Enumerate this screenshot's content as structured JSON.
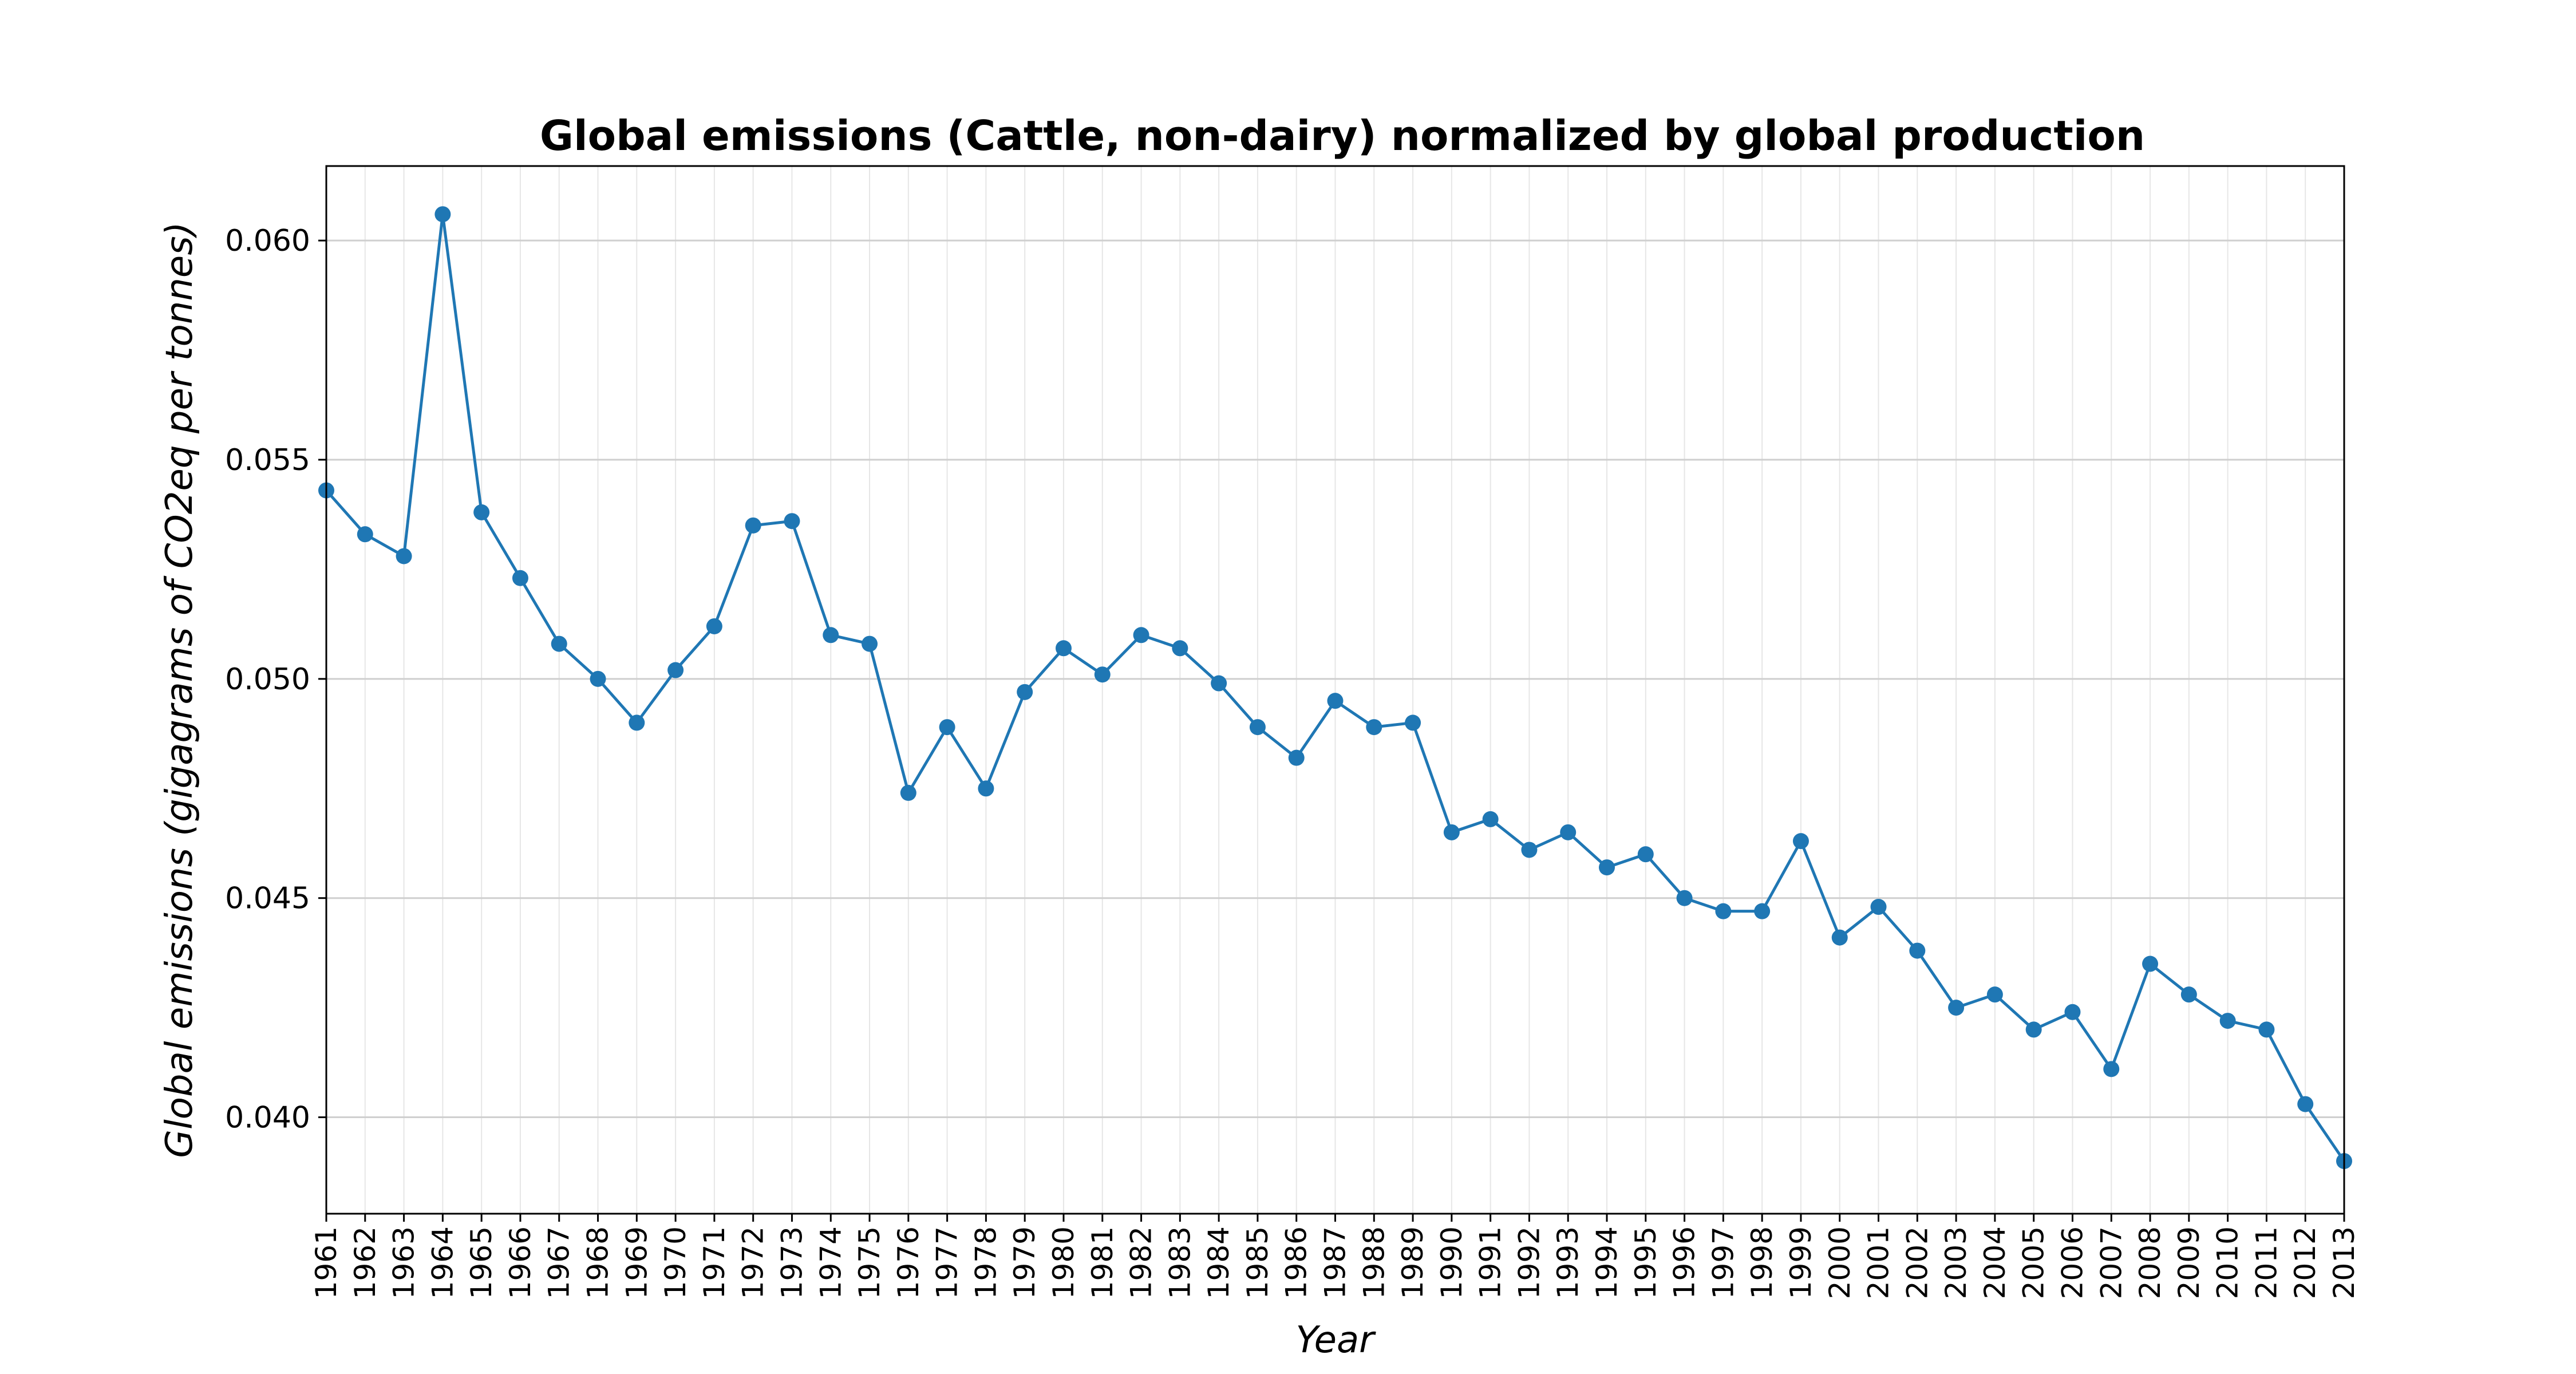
{
  "chart_data": {
    "type": "line",
    "title": "Global emissions (Cattle, non-dairy) normalized by global production",
    "xlabel": "Year",
    "ylabel": "Global emissions (gigagrams of CO2eq per tonnes)",
    "ylim": [
      0.0378,
      0.0617
    ],
    "xlim": [
      1961,
      2013
    ],
    "yticks": [
      0.04,
      0.045,
      0.05,
      0.055,
      0.06
    ],
    "ytick_labels": [
      "0.040",
      "0.045",
      "0.050",
      "0.055",
      "0.060"
    ],
    "grid": true,
    "line_color": "#1f77b4",
    "x": [
      1961,
      1962,
      1963,
      1964,
      1965,
      1966,
      1967,
      1968,
      1969,
      1970,
      1971,
      1972,
      1973,
      1974,
      1975,
      1976,
      1977,
      1978,
      1979,
      1980,
      1981,
      1982,
      1983,
      1984,
      1985,
      1986,
      1987,
      1988,
      1989,
      1990,
      1991,
      1992,
      1993,
      1994,
      1995,
      1996,
      1997,
      1998,
      1999,
      2000,
      2001,
      2002,
      2003,
      2004,
      2005,
      2006,
      2007,
      2008,
      2009,
      2010,
      2011,
      2012,
      2013
    ],
    "xtick_labels": [
      "1961",
      "1962",
      "1963",
      "1964",
      "1965",
      "1966",
      "1967",
      "1968",
      "1969",
      "1970",
      "1971",
      "1972",
      "1973",
      "1974",
      "1975",
      "1976",
      "1977",
      "1978",
      "1979",
      "1980",
      "1981",
      "1982",
      "1983",
      "1984",
      "1985",
      "1986",
      "1987",
      "1988",
      "1989",
      "1990",
      "1991",
      "1992",
      "1993",
      "1994",
      "1995",
      "1996",
      "1997",
      "1998",
      "1999",
      "2000",
      "2001",
      "2002",
      "2003",
      "2004",
      "2005",
      "2006",
      "2007",
      "2008",
      "2009",
      "2010",
      "2011",
      "2012",
      "2013"
    ],
    "series": [
      {
        "values": [
          0.0543,
          0.0533,
          0.0528,
          0.0606,
          0.0538,
          0.0523,
          0.0508,
          0.05,
          0.049,
          0.0502,
          0.0512,
          0.0535,
          0.0536,
          0.051,
          0.0508,
          0.0474,
          0.0489,
          0.0475,
          0.0497,
          0.0507,
          0.0501,
          0.051,
          0.0507,
          0.0499,
          0.0489,
          0.0482,
          0.0495,
          0.0489,
          0.049,
          0.0465,
          0.0468,
          0.0461,
          0.0465,
          0.0457,
          0.046,
          0.045,
          0.0447,
          0.0447,
          0.0463,
          0.0441,
          0.0448,
          0.0438,
          0.0425,
          0.0428,
          0.042,
          0.0424,
          0.0411,
          0.0435,
          0.0428,
          0.0422,
          0.042,
          0.0403,
          0.039
        ]
      }
    ]
  }
}
